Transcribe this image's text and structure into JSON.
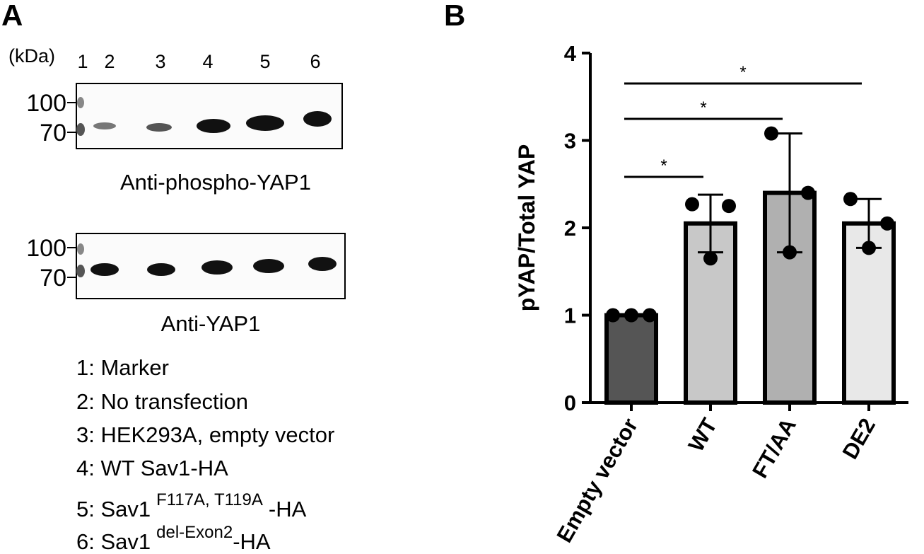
{
  "panel_a": {
    "label": "A",
    "unit": "(kDa)",
    "lanes": [
      "1",
      "2",
      "3",
      "4",
      "5",
      "6"
    ],
    "blots": [
      {
        "markers": [
          "100",
          "70"
        ],
        "caption": "Anti-phospho-YAP1"
      },
      {
        "markers": [
          "100",
          "70"
        ],
        "caption": "Anti-YAP1"
      }
    ],
    "legend": [
      {
        "text": "1: Marker"
      },
      {
        "text": "2: No transfection"
      },
      {
        "text": "3: HEK293A, empty vector"
      },
      {
        "text": "4: WT Sav1-HA"
      },
      {
        "text": "5: Sav1",
        "sup": "F117A, T119A",
        "end": "-HA"
      },
      {
        "text": "6: Sav1",
        "sup": "del-Exon2",
        "end": "-HA"
      }
    ]
  },
  "chart_data": {
    "type": "bar",
    "panel_label": "B",
    "y_label": "pYAP/Total YAP",
    "categories": [
      "Empty vector",
      "WT",
      "FT/AA",
      "DE2"
    ],
    "values": [
      1.0,
      2.05,
      2.4,
      2.05
    ],
    "errors": [
      0,
      0.33,
      0.68,
      0.28
    ],
    "points": [
      [
        1.0,
        1.0,
        1.0
      ],
      [
        2.27,
        2.25,
        1.65
      ],
      [
        3.08,
        2.4,
        1.72
      ],
      [
        2.33,
        2.05,
        1.77
      ]
    ],
    "colors": [
      "#555555",
      "#c8c8c8",
      "#b0b0b0",
      "#e8e8e8"
    ],
    "ylim": [
      0,
      4
    ],
    "yticks": [
      0,
      1,
      2,
      3,
      4
    ],
    "significance": [
      {
        "from": 0,
        "to": 1,
        "label": "*"
      },
      {
        "from": 0,
        "to": 2,
        "label": "*"
      },
      {
        "from": 0,
        "to": 3,
        "label": "*"
      }
    ]
  }
}
